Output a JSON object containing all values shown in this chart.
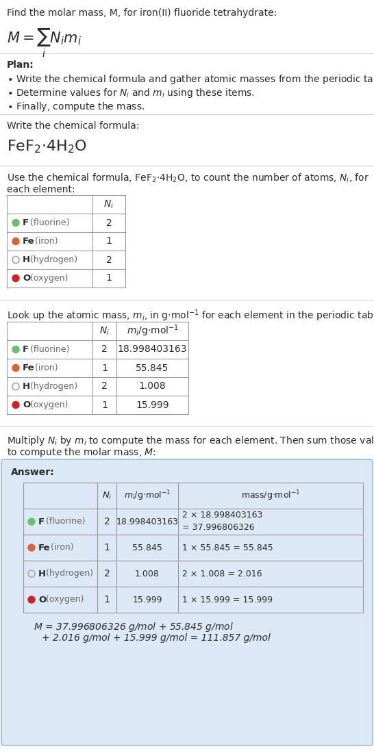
{
  "bg_color": "#ffffff",
  "answer_bg": "#dce8f5",
  "answer_border": "#a0bcd0",
  "section_line_color": "#cccccc",
  "text_color": "#2a2a2a",
  "gray_text": "#666666",
  "table_line_color": "#999999",
  "elements": [
    {
      "symbol": "F",
      "name": "fluorine",
      "color": "#6abf6a",
      "filled": true,
      "Ni": 2,
      "mi": "18.998403163",
      "mass_line1": "2 × 18.998403163",
      "mass_line2": "= 37.996806326"
    },
    {
      "symbol": "Fe",
      "name": "iron",
      "color": "#e06030",
      "filled": true,
      "Ni": 1,
      "mi": "55.845",
      "mass_line1": "1 × 55.845 = 55.845",
      "mass_line2": ""
    },
    {
      "symbol": "H",
      "name": "hydrogen",
      "color": "#aaaaaa",
      "filled": false,
      "Ni": 2,
      "mi": "1.008",
      "mass_line1": "2 × 1.008 = 2.016",
      "mass_line2": ""
    },
    {
      "symbol": "O",
      "name": "oxygen",
      "color": "#cc2222",
      "filled": true,
      "Ni": 1,
      "mi": "15.999",
      "mass_line1": "1 × 15.999 = 15.999",
      "mass_line2": ""
    }
  ]
}
